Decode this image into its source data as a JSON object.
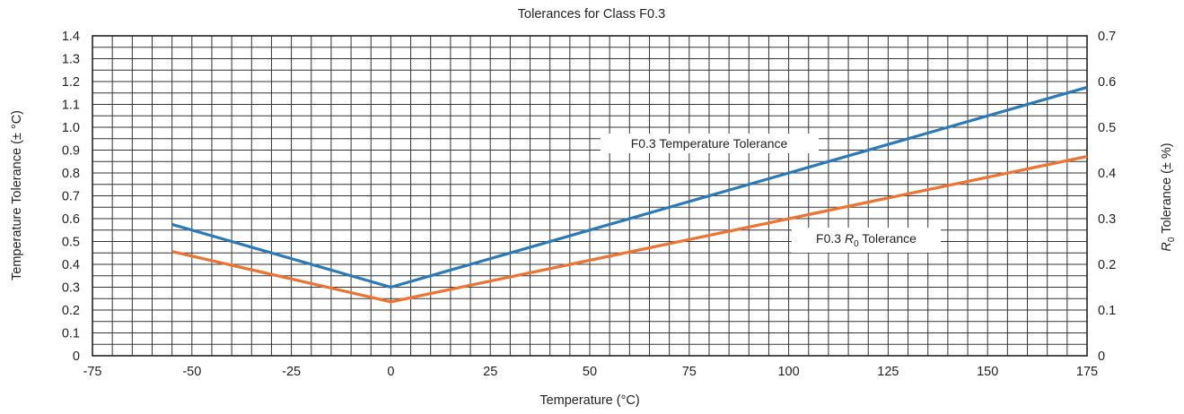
{
  "chart_data": {
    "type": "line",
    "title": "Tolerances for Class F0.3",
    "xlabel": "Temperature (°C)",
    "ylabel": "Temperature Tolerance (± °C)",
    "y2label_symbol": "R",
    "y2label_subscript": "0",
    "y2label_rest": " Tolerance (± %)",
    "xlim": [
      -75,
      175
    ],
    "ylim": [
      0,
      1.4
    ],
    "y2lim": [
      0,
      0.7
    ],
    "x_ticks": [
      "-75",
      "-50",
      "-25",
      "0",
      "25",
      "50",
      "75",
      "100",
      "125",
      "150",
      "175"
    ],
    "y_ticks": [
      "0",
      "0.1",
      "0.2",
      "0.3",
      "0.4",
      "0.5",
      "0.6",
      "0.7",
      "0.8",
      "0.9",
      "1.0",
      "1.1",
      "1.2",
      "1.3",
      "1.4"
    ],
    "y2_ticks": [
      "0",
      "0.1",
      "0.2",
      "0.3",
      "0.4",
      "0.5",
      "0.6",
      "0.7"
    ],
    "grid": true,
    "series": [
      {
        "name": "F0.3 Temperature Tolerance",
        "axis": "left",
        "color": "#2a7ab8",
        "x": [
          -55,
          0,
          175
        ],
        "y": [
          0.575,
          0.3,
          1.175
        ]
      },
      {
        "name_prefix": "F0.3 ",
        "name_symbol": "R",
        "name_subscript": "0",
        "name_suffix": " Tolerance",
        "axis": "right",
        "color": "#ee7230",
        "x": [
          -55,
          0,
          175
        ],
        "y": [
          0.228,
          0.118,
          0.436
        ]
      }
    ]
  }
}
